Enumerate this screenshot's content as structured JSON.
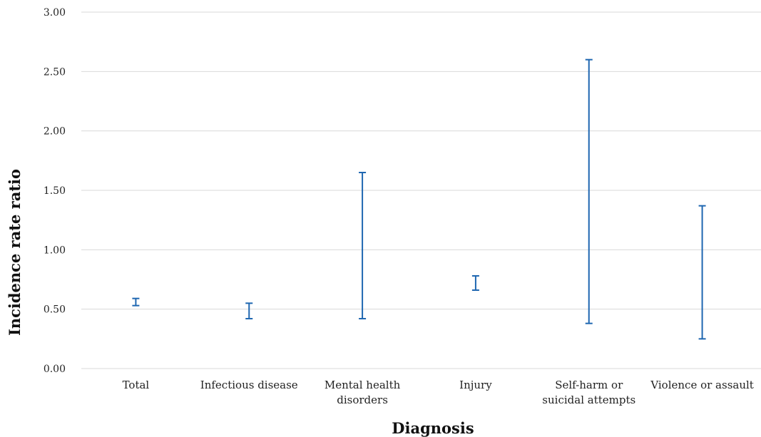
{
  "chart_data": {
    "type": "errorbar",
    "title": "",
    "xlabel": "Diagnosis",
    "ylabel": "Incidence rate ratio",
    "ylim": [
      0,
      3
    ],
    "yticks": [
      "0.00",
      "0.50",
      "1.00",
      "1.50",
      "2.00",
      "2.50",
      "3.00"
    ],
    "grid": true,
    "legend": "none",
    "categories": [
      [
        "Total"
      ],
      [
        "Infectious disease"
      ],
      [
        "Mental health",
        "disorders"
      ],
      [
        "Injury"
      ],
      [
        "Self-harm or",
        "suicidal attempts"
      ],
      [
        "Violence or assault"
      ]
    ],
    "series": [
      {
        "lower": [
          0.53,
          0.42,
          0.42,
          0.66,
          0.38,
          0.25
        ],
        "upper": [
          0.59,
          0.55,
          1.65,
          0.78,
          2.6,
          1.37
        ]
      }
    ],
    "colors": {
      "bar": "#1f67b1",
      "grid": "#d9d9d9"
    }
  }
}
